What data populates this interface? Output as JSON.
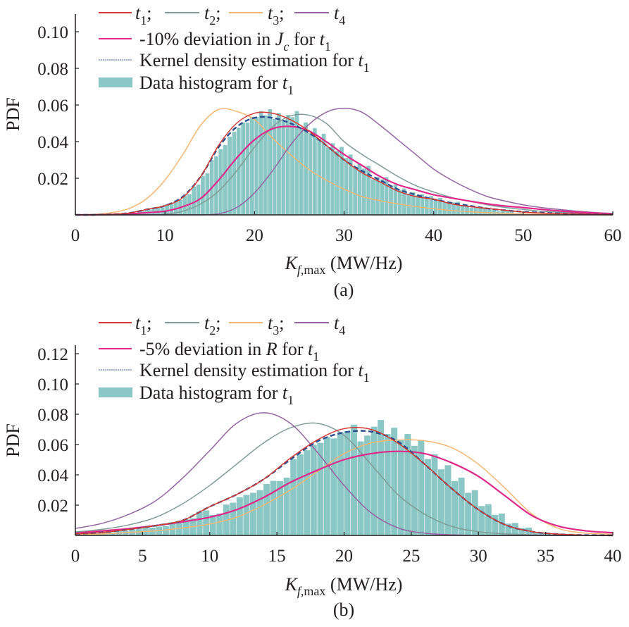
{
  "chart_data": [
    {
      "type": "line",
      "panel_label": "(a)",
      "ylabel": "PDF",
      "xlabel": {
        "var": "K",
        "sub": "f,",
        "sub_roman": "max",
        "unit": " (MW/Hz)"
      },
      "xlim": [
        0,
        60
      ],
      "ylim": [
        0,
        0.1
      ],
      "xticks": [
        "0",
        "10",
        "20",
        "30",
        "40",
        "50",
        "60"
      ],
      "yticks": [
        "0.02",
        "0.04",
        "0.06",
        "0.08",
        "0.10"
      ],
      "grid": false,
      "legend_placement": "top-left",
      "x": [
        0,
        2,
        4,
        6,
        8,
        10,
        12,
        14,
        16,
        18,
        20,
        22,
        24,
        26,
        28,
        30,
        32,
        34,
        36,
        38,
        40,
        42,
        44,
        46,
        48,
        50,
        52,
        54,
        56,
        58,
        60
      ],
      "series": [
        {
          "name": "t1",
          "key": "t1",
          "color": "#d43a35",
          "values": [
            0,
            0,
            0.0003,
            0.001,
            0.003,
            0.005,
            0.0095,
            0.021,
            0.038,
            0.05,
            0.0555,
            0.0555,
            0.052,
            0.046,
            0.038,
            0.03,
            0.023,
            0.018,
            0.013,
            0.01,
            0.0085,
            0.006,
            0.0045,
            0.0035,
            0.0025,
            0.0015,
            0.001,
            0.0007,
            0.0005,
            0.0003,
            0.0002
          ]
        },
        {
          "name": "t2",
          "key": "t2",
          "color": "#7f9c98",
          "values": [
            0,
            0,
            0,
            0,
            0,
            0.0004,
            0.002,
            0.006,
            0.013,
            0.024,
            0.037,
            0.048,
            0.054,
            0.0545,
            0.05,
            0.04,
            0.033,
            0.027,
            0.021,
            0.016,
            0.0125,
            0.0095,
            0.0075,
            0.0055,
            0.004,
            0.003,
            0.002,
            0.0015,
            0.001,
            0.0007,
            0.0005
          ]
        },
        {
          "name": "t3",
          "key": "t3",
          "color": "#f5b773",
          "values": [
            0.0001,
            0.0003,
            0.0012,
            0.0035,
            0.009,
            0.019,
            0.033,
            0.049,
            0.0576,
            0.0565,
            0.052,
            0.042,
            0.033,
            0.025,
            0.019,
            0.014,
            0.01,
            0.0078,
            0.006,
            0.0045,
            0.0033,
            0.0024,
            0.0017,
            0.0012,
            0.0008,
            0.0005,
            0.0003,
            0.0002,
            0.0001,
            0.0001,
            0
          ]
        },
        {
          "name": "t4",
          "key": "t4",
          "color": "#9565a3",
          "values": [
            0,
            0,
            0,
            0,
            0,
            0,
            0,
            0,
            0.0006,
            0.004,
            0.012,
            0.024,
            0.038,
            0.049,
            0.056,
            0.0582,
            0.056,
            0.049,
            0.041,
            0.033,
            0.025,
            0.019,
            0.014,
            0.01,
            0.0075,
            0.0055,
            0.004,
            0.003,
            0.002,
            0.0013,
            0.0008
          ]
        },
        {
          "name": "-10% deviation in Jc for t1",
          "key": "dev",
          "color": "#e0288a",
          "values": [
            0,
            0,
            0.0002,
            0.0006,
            0.0012,
            0.002,
            0.0045,
            0.009,
            0.019,
            0.031,
            0.041,
            0.047,
            0.0483,
            0.046,
            0.04,
            0.033,
            0.027,
            0.021,
            0.0165,
            0.0137,
            0.011,
            0.0092,
            0.0075,
            0.006,
            0.0048,
            0.004,
            0.003,
            0.0022,
            0.0015,
            0.001,
            0.0006
          ]
        },
        {
          "name": "Kernel density estimation for t1",
          "key": "kde",
          "color": "#2b4f8f",
          "dashed": true,
          "values": [
            0,
            0,
            0.0003,
            0.001,
            0.003,
            0.005,
            0.01,
            0.021,
            0.037,
            0.048,
            0.053,
            0.053,
            0.05,
            0.045,
            0.038,
            0.03,
            0.024,
            0.019,
            0.014,
            0.011,
            0.0085,
            0.0065,
            0.005,
            0.0035,
            0.0025,
            0.0017,
            0.0012,
            0.0008,
            0.0005,
            0.0003,
            0.0002
          ]
        }
      ],
      "histogram": {
        "name": "Data histogram for t1",
        "color": "#8bc7c4",
        "bin_start": 6,
        "bin_width": 1,
        "values": [
          0.001,
          0.002,
          0.003,
          0.004,
          0.006,
          0.008,
          0.011,
          0.016,
          0.022,
          0.031,
          0.037,
          0.044,
          0.049,
          0.052,
          0.055,
          0.056,
          0.054,
          0.053,
          0.055,
          0.049,
          0.046,
          0.043,
          0.038,
          0.036,
          0.032,
          0.027,
          0.026,
          0.02,
          0.02,
          0.016,
          0.014,
          0.012,
          0.011,
          0.01,
          0.009,
          0.007,
          0.007,
          0.005,
          0.004,
          0.004,
          0.003,
          0.002,
          0.002,
          0.001
        ]
      },
      "legend": {
        "row1": [
          {
            "var": "t",
            "sub": "1",
            "sep": ";"
          },
          {
            "var": "t",
            "sub": "2",
            "sep": ";"
          },
          {
            "var": "t",
            "sub": "3",
            "sep": ";"
          },
          {
            "var": "t",
            "sub": "4",
            "sep": ""
          }
        ],
        "dev": {
          "text": "-10% deviation in ",
          "var": "J",
          "sub": "c",
          "mid": " for ",
          "var2": "t",
          "sub2": "1"
        },
        "kde": {
          "text": "Kernel density estimation for ",
          "var2": "t",
          "sub2": "1"
        },
        "hist": {
          "text": "Data histogram for ",
          "var2": "t",
          "sub2": "1"
        }
      }
    },
    {
      "type": "line",
      "panel_label": "(b)",
      "ylabel": "PDF",
      "xlabel": {
        "var": "K",
        "sub": "f,",
        "sub_roman": "max",
        "unit": " (MW/Hz)"
      },
      "xlim": [
        0,
        40
      ],
      "ylim": [
        0,
        0.12
      ],
      "xticks": [
        "0",
        "5",
        "10",
        "15",
        "20",
        "25",
        "30",
        "35",
        "40"
      ],
      "yticks": [
        "0.02",
        "0.04",
        "0.06",
        "0.08",
        "0.10",
        "0.12"
      ],
      "grid": false,
      "legend_placement": "top-left",
      "x": [
        0,
        2,
        4,
        6,
        8,
        10,
        12,
        14,
        16,
        18,
        20,
        22,
        24,
        26,
        28,
        30,
        32,
        34,
        36,
        38,
        40
      ],
      "series": [
        {
          "name": "t1",
          "key": "t1",
          "color": "#d43a35",
          "values": [
            0.001,
            0.002,
            0.004,
            0.0065,
            0.01,
            0.019,
            0.027,
            0.037,
            0.051,
            0.063,
            0.0705,
            0.07,
            0.061,
            0.047,
            0.031,
            0.017,
            0.007,
            0.0025,
            0.0008,
            0.0002,
            0
          ]
        },
        {
          "name": "t2",
          "key": "t2",
          "color": "#7f9c98",
          "values": [
            0.0023,
            0.004,
            0.007,
            0.012,
            0.021,
            0.033,
            0.047,
            0.061,
            0.071,
            0.074,
            0.066,
            0.047,
            0.027,
            0.014,
            0.006,
            0.0025,
            0.001,
            0.0004,
            0.0002,
            0.0001,
            0
          ]
        },
        {
          "name": "t3",
          "key": "t3",
          "color": "#f5b773",
          "values": [
            0.0005,
            0.001,
            0.002,
            0.003,
            0.005,
            0.0075,
            0.012,
            0.02,
            0.03,
            0.042,
            0.054,
            0.061,
            0.063,
            0.0625,
            0.058,
            0.047,
            0.031,
            0.014,
            0.0045,
            0.0015,
            0.0008
          ]
        },
        {
          "name": "t4",
          "key": "t4",
          "color": "#9565a3",
          "values": [
            0.0046,
            0.008,
            0.014,
            0.023,
            0.038,
            0.056,
            0.074,
            0.081,
            0.074,
            0.055,
            0.033,
            0.015,
            0.005,
            0.0015,
            0.0004,
            0.0001,
            0,
            0,
            0,
            0,
            0
          ]
        },
        {
          "name": "-5% deviation in R for t1",
          "key": "dev",
          "color": "#e0288a",
          "values": [
            0.0015,
            0.003,
            0.0045,
            0.0065,
            0.009,
            0.012,
            0.017,
            0.025,
            0.035,
            0.043,
            0.05,
            0.054,
            0.0555,
            0.054,
            0.048,
            0.039,
            0.026,
            0.013,
            0.006,
            0.003,
            0.0018
          ]
        },
        {
          "name": "Kernel density estimation for t1",
          "key": "kde",
          "color": "#2b4f8f",
          "dashed": true,
          "values": [
            0.001,
            0.002,
            0.004,
            0.0065,
            0.01,
            0.019,
            0.027,
            0.037,
            0.05,
            0.062,
            0.068,
            0.0685,
            0.062,
            0.047,
            0.031,
            0.017,
            0.007,
            0.0025,
            0.0008,
            0.0002,
            0
          ]
        }
      ],
      "histogram": {
        "name": "Data histogram for t1",
        "color": "#8bc7c4",
        "bin_start": 0,
        "bin_width": 1,
        "values": [
          0.001,
          0.002,
          0.002,
          0.003,
          0.004,
          0.005,
          0.006,
          0.008,
          0.011,
          0.016,
          0.014,
          0.021,
          0.026,
          0.029,
          0.035,
          0.037,
          0.052,
          0.058,
          0.063,
          0.066,
          0.071,
          0.064,
          0.074,
          0.069,
          0.065,
          0.061,
          0.052,
          0.045,
          0.037,
          0.029,
          0.02,
          0.014,
          0.008,
          0.005,
          0.002
        ]
      },
      "legend": {
        "row1": [
          {
            "var": "t",
            "sub": "1",
            "sep": ";"
          },
          {
            "var": "t",
            "sub": "2",
            "sep": ";"
          },
          {
            "var": "t",
            "sub": "3",
            "sep": ";"
          },
          {
            "var": "t",
            "sub": "4",
            "sep": ""
          }
        ],
        "dev": {
          "text": "-5% deviation in ",
          "var": "R",
          "sub": "",
          "mid": " for ",
          "var2": "t",
          "sub2": "1"
        },
        "kde": {
          "text": "Kernel density estimation for ",
          "var2": "t",
          "sub2": "1"
        },
        "hist": {
          "text": "Data histogram for ",
          "var2": "t",
          "sub2": "1"
        }
      }
    }
  ]
}
